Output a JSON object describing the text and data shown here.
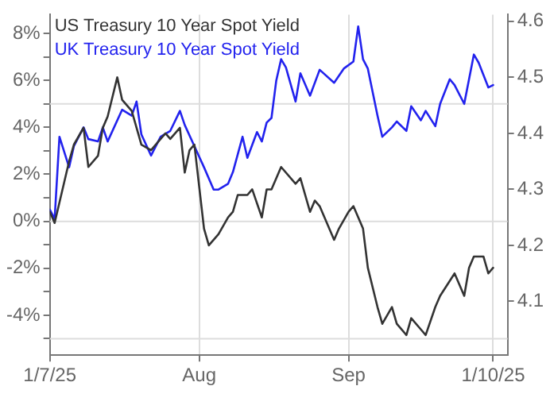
{
  "chart_data": {
    "type": "line",
    "series": [
      {
        "name": "US Treasury 10 Year Spot Yield",
        "color": "#333333",
        "axis": "y2",
        "x": [
          "2025-07-01",
          "2025-07-02",
          "2025-07-05",
          "2025-07-06",
          "2025-07-08",
          "2025-07-09",
          "2025-07-11",
          "2025-07-12",
          "2025-07-13",
          "2025-07-15",
          "2025-07-16",
          "2025-07-18",
          "2025-07-20",
          "2025-07-22",
          "2025-07-24",
          "2025-07-25",
          "2025-07-26",
          "2025-07-28",
          "2025-07-29",
          "2025-07-30",
          "2025-07-31",
          "2025-08-02",
          "2025-08-03",
          "2025-08-05",
          "2025-08-07",
          "2025-08-08",
          "2025-08-09",
          "2025-08-11",
          "2025-08-12",
          "2025-08-14",
          "2025-08-15",
          "2025-08-16",
          "2025-08-18",
          "2025-08-21",
          "2025-08-22",
          "2025-08-24",
          "2025-08-25",
          "2025-08-26",
          "2025-08-29",
          "2025-08-30",
          "2025-09-01",
          "2025-09-02",
          "2025-09-04",
          "2025-09-05",
          "2025-09-07",
          "2025-09-08",
          "2025-09-10",
          "2025-09-11",
          "2025-09-13",
          "2025-09-14",
          "2025-09-16",
          "2025-09-17",
          "2025-09-19",
          "2025-09-20",
          "2025-09-23",
          "2025-09-25",
          "2025-09-26",
          "2025-09-27",
          "2025-09-29",
          "2025-09-30",
          "2025-10-01"
        ],
        "values": [
          4.26,
          4.24,
          4.35,
          4.38,
          4.41,
          4.34,
          4.36,
          4.41,
          4.43,
          4.5,
          4.46,
          4.44,
          4.38,
          4.37,
          4.39,
          4.4,
          4.39,
          4.41,
          4.33,
          4.37,
          4.38,
          4.23,
          4.2,
          4.22,
          4.25,
          4.26,
          4.29,
          4.29,
          4.3,
          4.25,
          4.3,
          4.3,
          4.34,
          4.31,
          4.32,
          4.26,
          4.28,
          4.27,
          4.21,
          4.23,
          4.26,
          4.27,
          4.23,
          4.16,
          4.09,
          4.06,
          4.09,
          4.06,
          4.04,
          4.07,
          4.05,
          4.04,
          4.09,
          4.11,
          4.15,
          4.11,
          4.16,
          4.18,
          4.18,
          4.15,
          4.16
        ]
      },
      {
        "name": "UK Treasury 10 Year Spot Yield",
        "color": "#2222ee",
        "x": [
          "2025-07-01",
          "2025-07-02",
          "2025-07-03",
          "2025-07-05",
          "2025-07-06",
          "2025-07-08",
          "2025-07-09",
          "2025-07-11",
          "2025-07-12",
          "2025-07-13",
          "2025-07-16",
          "2025-07-18",
          "2025-07-19",
          "2025-07-20",
          "2025-07-22",
          "2025-07-24",
          "2025-07-26",
          "2025-07-28",
          "2025-07-29",
          "2025-07-31",
          "2025-08-02",
          "2025-08-04",
          "2025-08-05",
          "2025-08-07",
          "2025-08-08",
          "2025-08-10",
          "2025-08-11",
          "2025-08-13",
          "2025-08-14",
          "2025-08-15",
          "2025-08-16",
          "2025-08-17",
          "2025-08-18",
          "2025-08-19",
          "2025-08-21",
          "2025-08-22",
          "2025-08-24",
          "2025-08-26",
          "2025-08-29",
          "2025-08-31",
          "2025-09-02",
          "2025-09-03",
          "2025-09-04",
          "2025-09-05",
          "2025-09-07",
          "2025-09-08",
          "2025-09-10",
          "2025-09-11",
          "2025-09-13",
          "2025-09-14",
          "2025-09-16",
          "2025-09-17",
          "2025-09-19",
          "2025-09-20",
          "2025-09-22",
          "2025-09-23",
          "2025-09-25",
          "2025-09-27",
          "2025-09-28",
          "2025-09-30",
          "2025-10-01"
        ],
        "values": [
          0.5,
          0.1,
          3.6,
          2.3,
          3.2,
          4.0,
          3.5,
          3.4,
          4.0,
          3.4,
          4.75,
          4.5,
          5.1,
          3.7,
          2.8,
          3.6,
          3.85,
          4.7,
          4.1,
          3.2,
          2.3,
          1.35,
          1.35,
          1.6,
          2.1,
          3.6,
          2.7,
          3.8,
          3.4,
          4.2,
          4.4,
          6.0,
          6.9,
          6.55,
          5.1,
          6.3,
          5.35,
          6.45,
          5.9,
          6.5,
          6.8,
          8.3,
          6.9,
          6.5,
          4.5,
          3.6,
          4.0,
          4.25,
          3.85,
          4.9,
          4.3,
          4.7,
          4.05,
          5.0,
          6.05,
          5.8,
          5.0,
          7.1,
          6.75,
          5.7,
          5.8
        ]
      }
    ],
    "xlim": [
      "2025-07-01",
      "2025-10-04"
    ],
    "xticks": [
      {
        "value": "2025-07-01",
        "label": "1/7/25"
      },
      {
        "value": "2025-08-01",
        "label": "Aug"
      },
      {
        "value": "2025-09-01",
        "label": "Sep"
      },
      {
        "value": "2025-10-01",
        "label": "1/10/25"
      }
    ],
    "ylim": [
      -5.7,
      8.8
    ],
    "yticks": [
      {
        "value": -5,
        "label": null
      },
      {
        "value": -4,
        "label": "-4%"
      },
      {
        "value": -3,
        "label": null
      },
      {
        "value": -2,
        "label": "-2%"
      },
      {
        "value": -1,
        "label": null
      },
      {
        "value": 0,
        "label": "0%"
      },
      {
        "value": 1,
        "label": null
      },
      {
        "value": 2,
        "label": "2%"
      },
      {
        "value": 3,
        "label": null
      },
      {
        "value": 4,
        "label": "4%"
      },
      {
        "value": 5,
        "label": null
      },
      {
        "value": 6,
        "label": "6%"
      },
      {
        "value": 7,
        "label": null
      },
      {
        "value": 8,
        "label": "8%"
      }
    ],
    "y2lim": [
      4.004,
      4.612
    ],
    "y2ticks": [
      4.1,
      4.2,
      4.3,
      4.4,
      4.5,
      4.6
    ],
    "ref_lines": [
      {
        "axis": "y",
        "value": 5,
        "color": "#dddddd"
      },
      {
        "axis": "y",
        "value": 0,
        "color": "#dddddd"
      },
      {
        "axis": "y",
        "value": -5,
        "color": "#dddddd"
      }
    ],
    "grid": "x",
    "legend": "top left",
    "marker": "none",
    "line_style": "solid"
  }
}
